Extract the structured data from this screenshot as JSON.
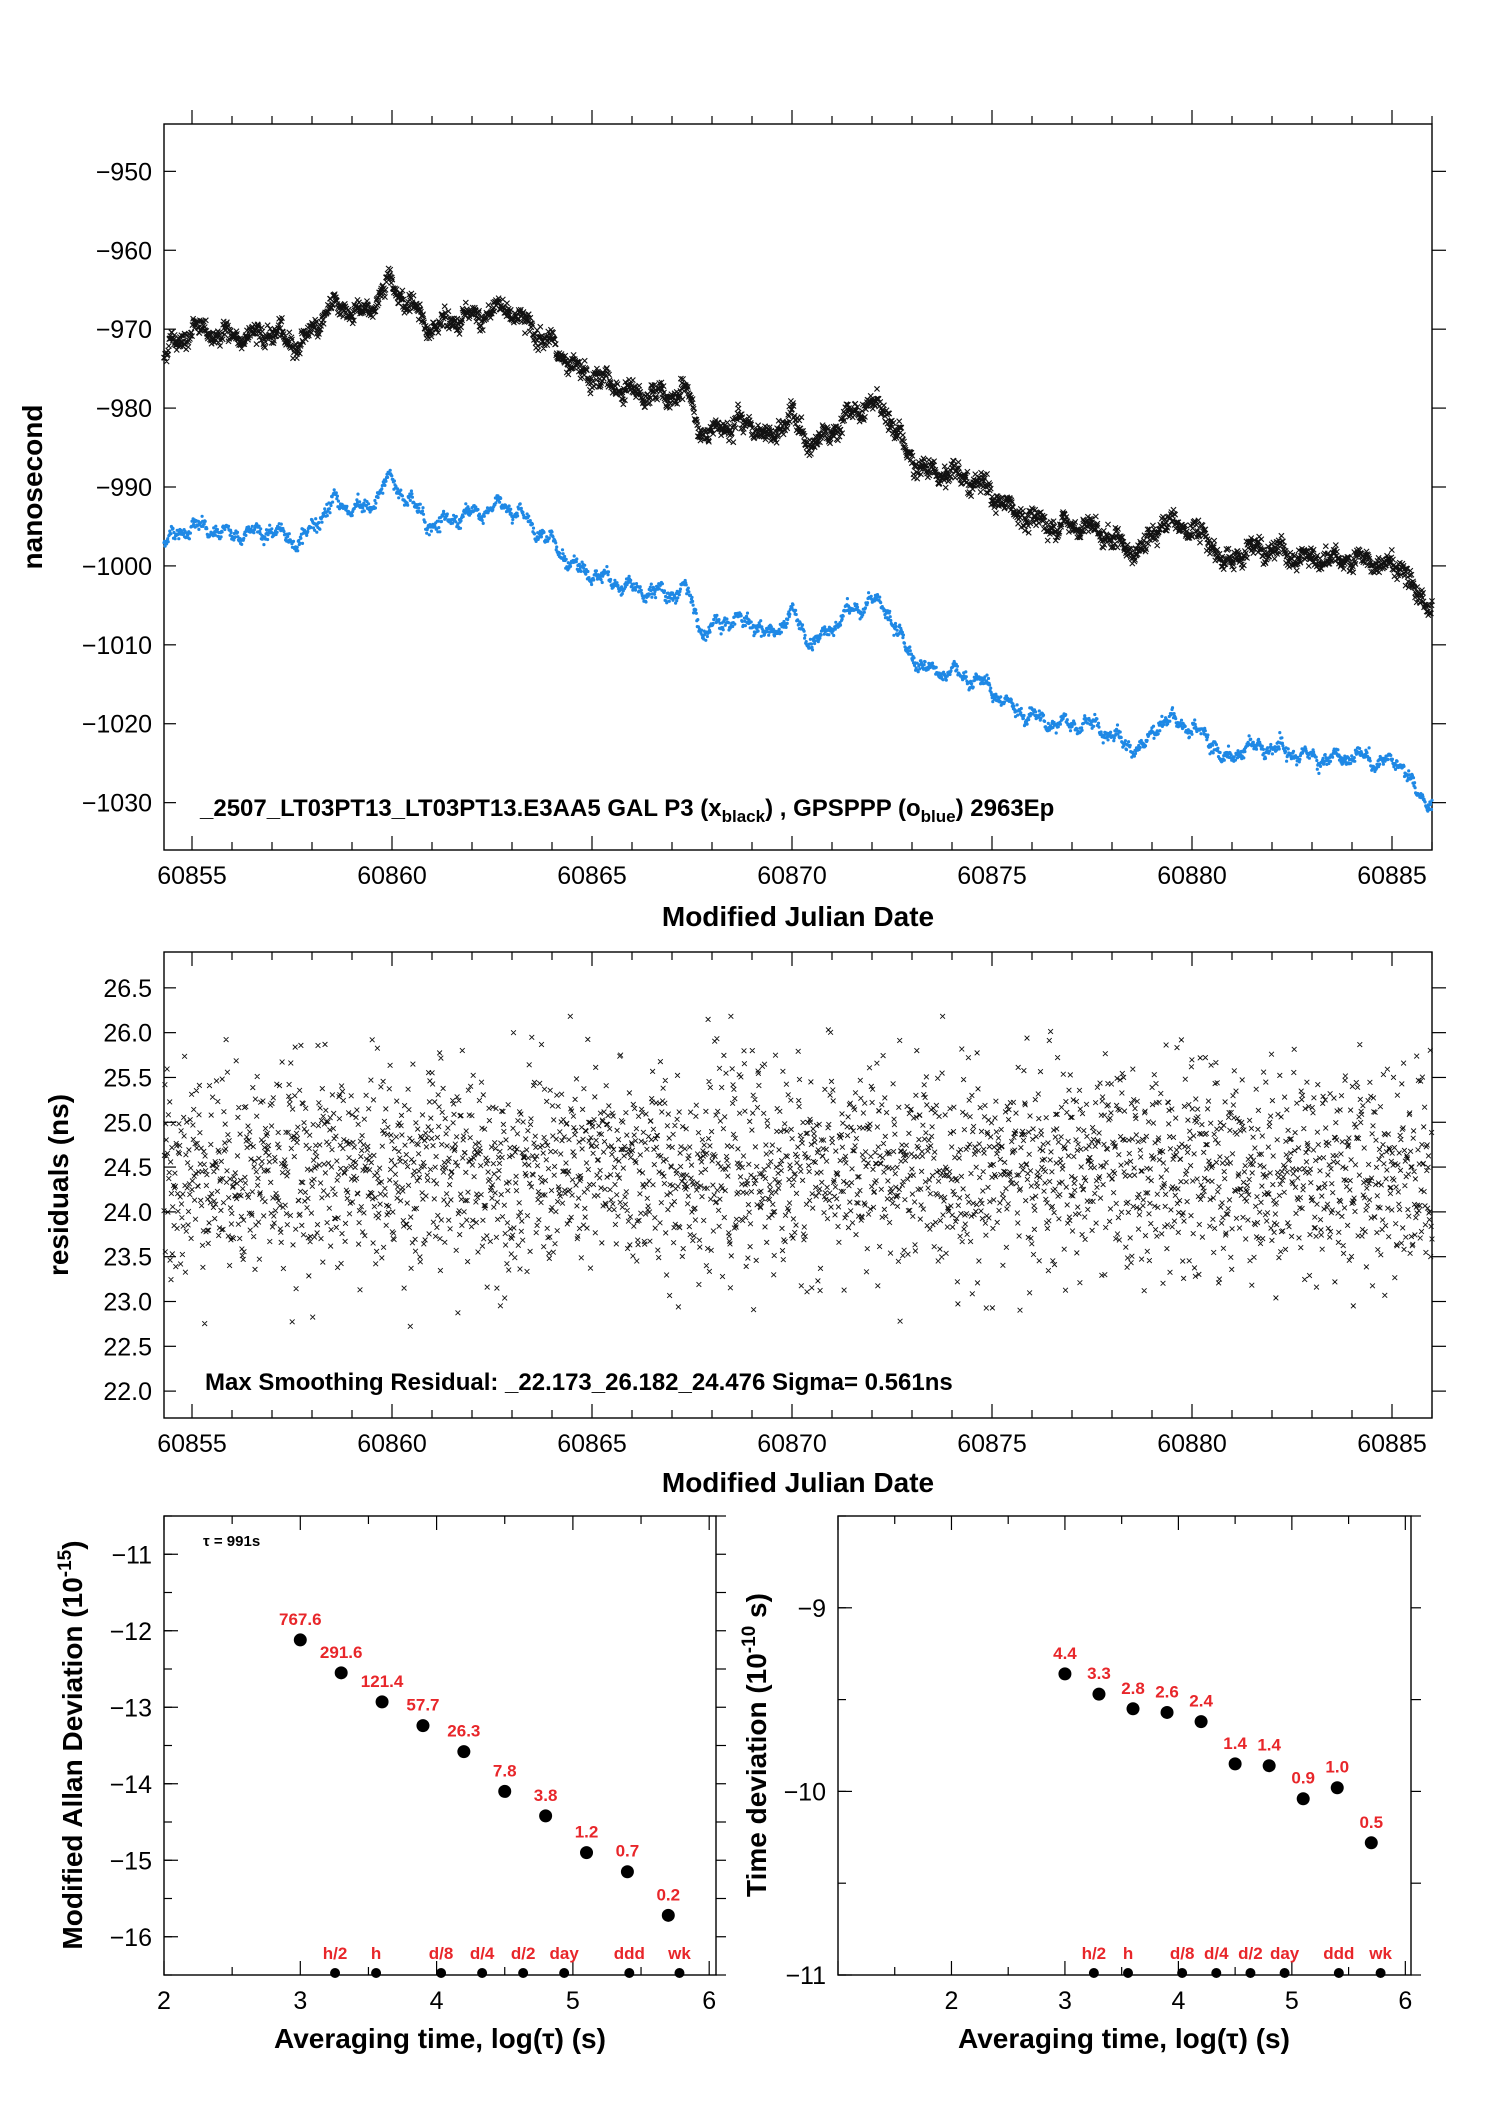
{
  "colors": {
    "black_series": "#111111",
    "blue_series": "#1e88e5",
    "red_labels": "#e8262a",
    "axis": "#000000"
  },
  "chart_data": [
    {
      "type": "scatter",
      "id": "time_series",
      "xlabel": "Modified Julian Date",
      "ylabel": "nanosecond",
      "xlim": [
        60854.3,
        60886.0
      ],
      "ylim": [
        -1036.0,
        -944.0
      ],
      "xticks": [
        60855,
        60860,
        60865,
        60870,
        60875,
        60880,
        60885
      ],
      "yticks": [
        -950,
        -960,
        -970,
        -980,
        -990,
        -1000,
        -1010,
        -1020,
        -1030
      ],
      "annotation": {
        "prefix": "_2507_LT03PT13_LT03PT13.E3AA5     GAL P3 (x",
        "sub1": "black",
        "mid": ") ,  GPSPPP (o",
        "sub2": "blue",
        "suffix": ")  2963Ep"
      },
      "series": [
        {
          "marker": "x",
          "color": "#111111",
          "x": [
            60854.3,
            60855,
            60856,
            60857,
            60857.7,
            60858.5,
            60859.4,
            60859.9,
            60860.5,
            60861,
            60861.5,
            60862.4,
            60862.8,
            60863.3,
            60864,
            60864.5,
            60865,
            60866,
            60867,
            60867.4,
            60867.8,
            60868.2,
            60869,
            60869.4,
            60870,
            60870.5,
            60871.4,
            60872,
            60872.3,
            60872.8,
            60873.3,
            60874,
            60874.8,
            60875.5,
            60876.5,
            60877.5,
            60878.5,
            60878.8,
            60879.2,
            60879.8,
            60880.5,
            60880.8,
            60881.3,
            60882,
            60882.7,
            60883.5,
            60884,
            60884.8,
            60885.3,
            60885.6,
            60886
          ],
          "y": [
            -973,
            -970,
            -971,
            -970.5,
            -972,
            -967,
            -968,
            -964,
            -967,
            -970,
            -969,
            -968,
            -967,
            -969,
            -972,
            -975,
            -976,
            -978,
            -978.5,
            -978,
            -984,
            -982,
            -982,
            -984,
            -981,
            -985,
            -981,
            -979.5,
            -980,
            -985,
            -988,
            -988.5,
            -990,
            -993,
            -995,
            -995,
            -998,
            -998,
            -994.5,
            -995,
            -997,
            -1000,
            -998,
            -998,
            -999,
            -999.5,
            -999,
            -1000,
            -1000,
            -1004,
            -1005
          ]
        },
        {
          "marker": "dot",
          "color": "#1e88e5",
          "x": [
            60854.3,
            60855,
            60856,
            60857,
            60857.7,
            60858.5,
            60859.4,
            60859.9,
            60860.5,
            60861,
            60861.5,
            60862.4,
            60862.8,
            60863.3,
            60864,
            60864.5,
            60865,
            60866,
            60867,
            60867.4,
            60867.8,
            60868.2,
            60869,
            60869.4,
            60870,
            60870.5,
            60871.4,
            60872,
            60872.3,
            60872.8,
            60873.3,
            60874,
            60874.8,
            60875.5,
            60876.5,
            60877.5,
            60878.5,
            60878.8,
            60879.2,
            60879.8,
            60880.5,
            60880.8,
            60881.3,
            60882,
            60882.7,
            60883.5,
            60884,
            60884.8,
            60885.3,
            60885.6,
            60886
          ],
          "y": [
            -997,
            -995,
            -996,
            -995.5,
            -997,
            -992,
            -993,
            -989,
            -992,
            -995,
            -994,
            -993,
            -992,
            -994,
            -997,
            -1000,
            -1001,
            -1003,
            -1003.5,
            -1003,
            -1009,
            -1007,
            -1007,
            -1009,
            -1006,
            -1010,
            -1006,
            -1004.5,
            -1005,
            -1010,
            -1013,
            -1013.5,
            -1015,
            -1018,
            -1020,
            -1020,
            -1023,
            -1023,
            -1019.5,
            -1020,
            -1022,
            -1025,
            -1023,
            -1023,
            -1024,
            -1024.5,
            -1024,
            -1025,
            -1025,
            -1029,
            -1030
          ]
        }
      ]
    },
    {
      "type": "scatter",
      "id": "residuals",
      "xlabel": "Modified Julian Date",
      "ylabel": "residuals (ns)",
      "xlim": [
        60854.3,
        60886.0
      ],
      "ylim": [
        21.7,
        26.9
      ],
      "xticks": [
        60855,
        60860,
        60865,
        60870,
        60875,
        60880,
        60885
      ],
      "yticks": [
        "22.0",
        "22.5",
        "23.0",
        "23.5",
        "24.0",
        "24.5",
        "25.0",
        "25.5",
        "26.0",
        "26.5"
      ],
      "annotation": "Max Smoothing Residual: _22.173_26.182_24.476  Sigma= 0.561ns",
      "summary": {
        "min": 22.173,
        "max": 26.182,
        "mean": 24.476,
        "sigma": 0.561,
        "unit": "ns"
      }
    },
    {
      "type": "scatter",
      "id": "mdev",
      "xlabel": "Averaging time, log(τ) (s)",
      "ylabel_main": "Modified Allan Deviation (10",
      "ylabel_sup": "-15",
      "ylabel_end": ")",
      "xlim": [
        2.0,
        6.05
      ],
      "ylim": [
        -16.5,
        -10.5
      ],
      "xticks": [
        "2",
        "3",
        "4",
        "5",
        "6"
      ],
      "yticks": [
        "-11",
        "-12",
        "-13",
        "-14",
        "-15",
        "-16"
      ],
      "tau_note": "τ = 991s",
      "x": [
        3.0,
        3.3,
        3.6,
        3.9,
        4.2,
        4.5,
        4.8,
        5.1,
        5.4,
        5.7
      ],
      "y": [
        -12.12,
        -12.55,
        -12.93,
        -13.24,
        -13.58,
        -14.1,
        -14.42,
        -14.9,
        -15.15,
        -15.72
      ],
      "labels": [
        "767.6",
        "291.6",
        "121.4",
        "57.7",
        "26.3",
        "7.8",
        "3.8",
        "1.2",
        "0.7",
        "0.2"
      ],
      "markers": [
        {
          "label": "h/2",
          "x": 3.255
        },
        {
          "label": "h",
          "x": 3.556
        },
        {
          "label": "d/8",
          "x": 4.033
        },
        {
          "label": "d/4",
          "x": 4.334
        },
        {
          "label": "d/2",
          "x": 4.635
        },
        {
          "label": "day",
          "x": 4.936
        },
        {
          "label": "ddd",
          "x": 5.414
        },
        {
          "label": "wk",
          "x": 5.782
        }
      ]
    },
    {
      "type": "scatter",
      "id": "tdev",
      "xlabel": "Averaging time, log(τ) (s)",
      "ylabel_main": "Time deviation (10",
      "ylabel_sup": "-10",
      "ylabel_end": " s)",
      "xlim": [
        1.0,
        6.05
      ],
      "ylim": [
        -11.0,
        -8.5
      ],
      "xticks": [
        "2",
        "3",
        "4",
        "5",
        "6"
      ],
      "yticks": [
        "-9",
        "-10",
        "-11"
      ],
      "x": [
        3.0,
        3.3,
        3.6,
        3.9,
        4.2,
        4.5,
        4.8,
        5.1,
        5.4,
        5.7
      ],
      "y": [
        -9.36,
        -9.47,
        -9.55,
        -9.57,
        -9.62,
        -9.85,
        -9.86,
        -10.04,
        -9.98,
        -10.28
      ],
      "labels": [
        "4.4",
        "3.3",
        "2.8",
        "2.6",
        "2.4",
        "1.4",
        "1.4",
        "0.9",
        "1.0",
        "0.5"
      ],
      "markers": [
        {
          "label": "h/2",
          "x": 3.255
        },
        {
          "label": "h",
          "x": 3.556
        },
        {
          "label": "d/8",
          "x": 4.033
        },
        {
          "label": "d/4",
          "x": 4.334
        },
        {
          "label": "d/2",
          "x": 4.635
        },
        {
          "label": "day",
          "x": 4.936
        },
        {
          "label": "ddd",
          "x": 5.414
        },
        {
          "label": "wk",
          "x": 5.782
        }
      ]
    }
  ]
}
